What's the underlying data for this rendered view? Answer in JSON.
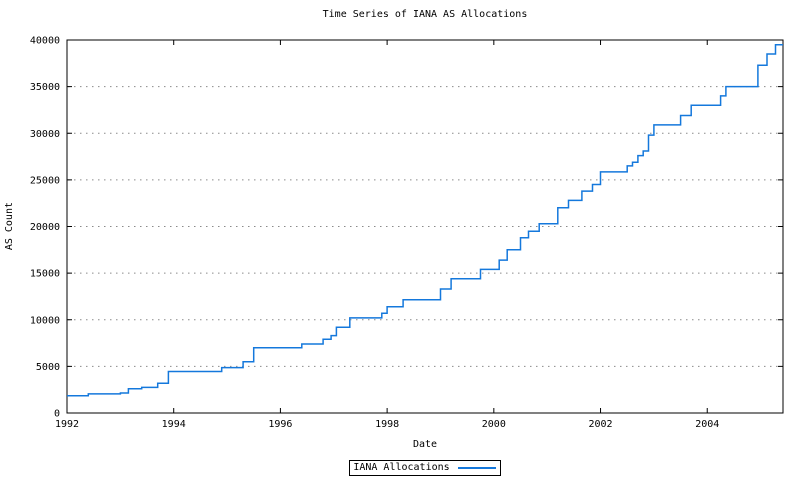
{
  "colors": {
    "background": "#ffffff",
    "axis": "#000000",
    "grid": "#8a8a8a",
    "line": "#1478dc",
    "text": "#000000"
  },
  "legend": {
    "label": "IANA Allocations"
  },
  "chart_data": {
    "type": "line",
    "title": "Time Series of IANA AS Allocations",
    "xlabel": "Date",
    "ylabel": "AS Count",
    "step_mode": "steps-post",
    "grid": "horizontal-dotted",
    "legend_position": "bottom-center-outside-boxed",
    "x_range": [
      1992,
      2005.42
    ],
    "y_range": [
      0,
      40000
    ],
    "x_ticks": [
      1992,
      1994,
      1996,
      1998,
      2000,
      2002,
      2004
    ],
    "y_ticks": [
      0,
      5000,
      10000,
      15000,
      20000,
      25000,
      30000,
      35000,
      40000
    ],
    "series": [
      {
        "name": "IANA Allocations",
        "color": "#1478dc",
        "points": [
          [
            1992.0,
            1850
          ],
          [
            1992.4,
            2050
          ],
          [
            1993.0,
            2150
          ],
          [
            1993.15,
            2600
          ],
          [
            1993.4,
            2750
          ],
          [
            1993.7,
            3200
          ],
          [
            1993.9,
            4450
          ],
          [
            1994.9,
            4870
          ],
          [
            1995.3,
            5500
          ],
          [
            1995.5,
            7000
          ],
          [
            1996.4,
            7400
          ],
          [
            1996.8,
            7900
          ],
          [
            1996.95,
            8300
          ],
          [
            1997.05,
            9200
          ],
          [
            1997.3,
            10200
          ],
          [
            1997.9,
            10700
          ],
          [
            1998.0,
            11400
          ],
          [
            1998.3,
            12150
          ],
          [
            1999.0,
            13300
          ],
          [
            1999.2,
            14400
          ],
          [
            1999.75,
            15400
          ],
          [
            2000.1,
            16400
          ],
          [
            2000.25,
            17500
          ],
          [
            2000.5,
            18800
          ],
          [
            2000.65,
            19500
          ],
          [
            2000.85,
            20300
          ],
          [
            2001.2,
            22000
          ],
          [
            2001.4,
            22800
          ],
          [
            2001.65,
            23800
          ],
          [
            2001.85,
            24500
          ],
          [
            2002.0,
            25850
          ],
          [
            2002.5,
            26500
          ],
          [
            2002.6,
            26900
          ],
          [
            2002.7,
            27600
          ],
          [
            2002.8,
            28100
          ],
          [
            2002.9,
            29800
          ],
          [
            2003.0,
            30900
          ],
          [
            2003.5,
            31900
          ],
          [
            2003.7,
            33000
          ],
          [
            2004.25,
            34000
          ],
          [
            2004.35,
            35000
          ],
          [
            2004.95,
            37300
          ],
          [
            2005.12,
            38500
          ],
          [
            2005.28,
            39500
          ],
          [
            2005.42,
            39500
          ]
        ]
      }
    ]
  }
}
